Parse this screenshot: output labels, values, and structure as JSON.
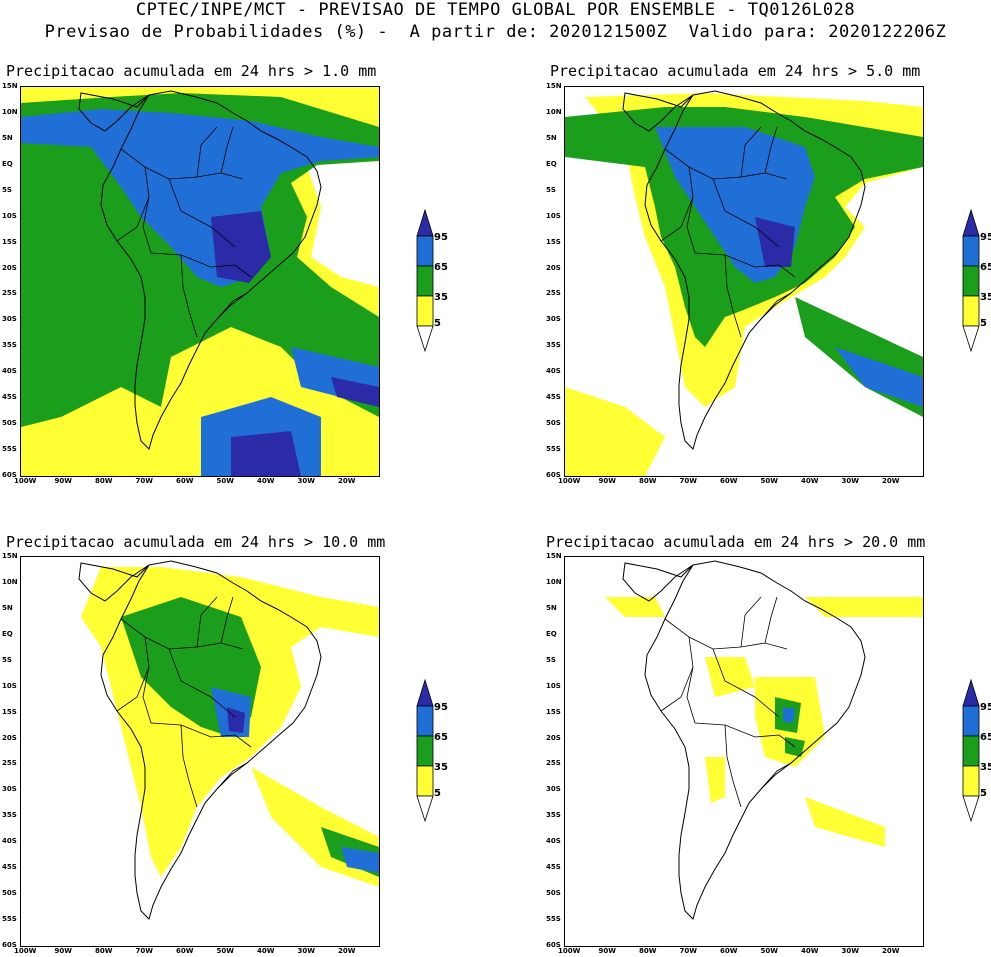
{
  "header": {
    "line1": "CPTEC/INPE/MCT - PREVISAO DE TEMPO GLOBAL POR ENSEMBLE - TQ0126L028",
    "line2": "Previsao de Probabilidades (%) -  A partir de: 2020121500Z  Valido para: 2020122206Z"
  },
  "panels": [
    {
      "title": "Precipitacao acumulada em 24 hrs > 1.0 mm",
      "level": 1
    },
    {
      "title": "Precipitacao acumulada em 24 hrs > 5.0 mm",
      "level": 2
    },
    {
      "title": "Precipitacao acumulada em 24 hrs > 10.0 mm",
      "level": 3
    },
    {
      "title": "Precipitacao acumulada em 24 hrs > 20.0 mm",
      "level": 4
    }
  ],
  "axes": {
    "lat_labels": [
      "15N",
      "10N",
      "5N",
      "EQ",
      "5S",
      "10S",
      "15S",
      "20S",
      "25S",
      "30S",
      "35S",
      "40S",
      "45S",
      "50S",
      "55S",
      "60S"
    ],
    "lon_labels": [
      "100W",
      "90W",
      "80W",
      "70W",
      "60W",
      "50W",
      "40W",
      "30W",
      "20W"
    ]
  },
  "legend": {
    "labels": [
      "95",
      "65",
      "35",
      "5"
    ],
    "colors": {
      "yellow": "#ffff33",
      "green": "#1b9e1b",
      "blue": "#1f6fd6",
      "navy": "#2b2ba8"
    }
  }
}
